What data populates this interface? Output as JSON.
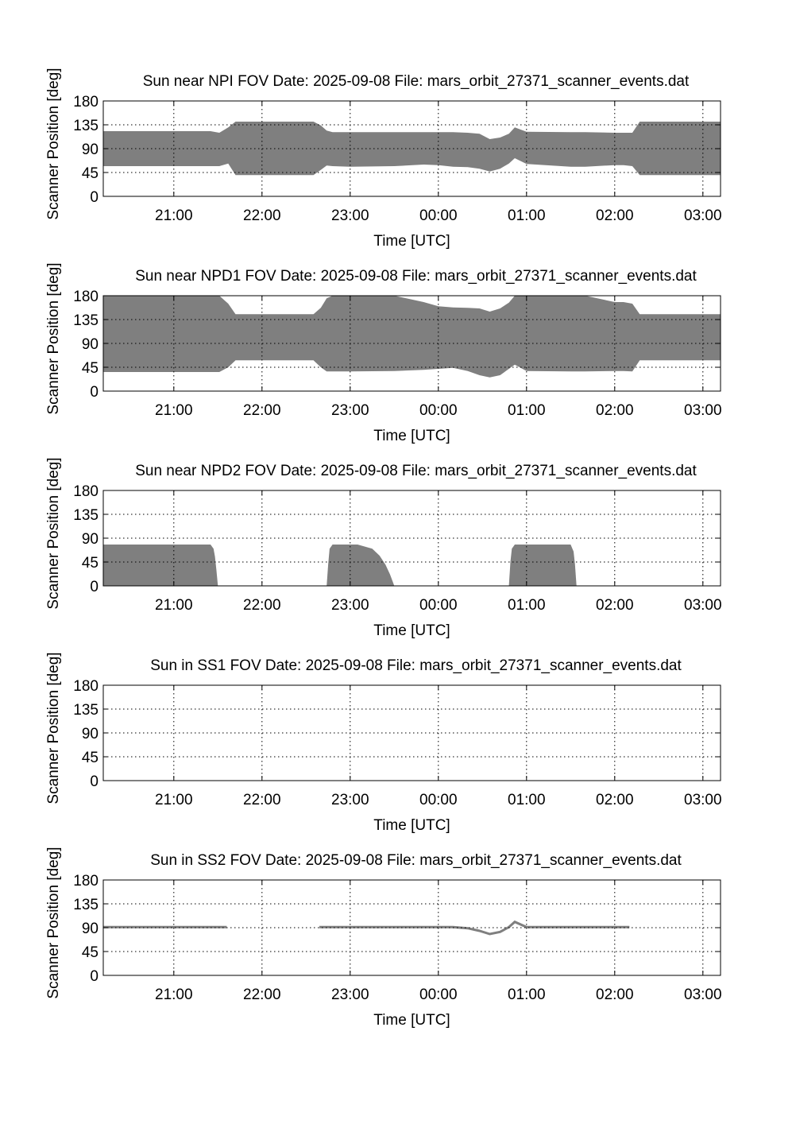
{
  "chart_data": [
    {
      "type": "area",
      "title": "Sun near NPI FOV   Date: 2025-09-08   File: mars_orbit_27371_scanner_events.dat",
      "xlabel": "Time [UTC]",
      "ylabel": "Scanner Position [deg]",
      "x_ticks": [
        "21:00",
        "22:00",
        "23:00",
        "00:00",
        "01:00",
        "02:00",
        "03:00"
      ],
      "y_ticks": [
        "0",
        "45",
        "90",
        "135",
        "180"
      ],
      "xlim": [
        "20:12",
        "03:12"
      ],
      "ylim": [
        0,
        180
      ],
      "grid": true,
      "fill_color": "#7f7f7f",
      "series": [
        {
          "style": "band",
          "segments": [
            {
              "x": [
                "20:12",
                "21:25",
                "21:31",
                "21:37",
                "21:42",
                "22:00",
                "22:35",
                "22:40",
                "22:44",
                "22:48",
                "23:00",
                "23:30",
                "23:50",
                "00:00",
                "00:10",
                "00:20",
                "00:28",
                "00:35",
                "00:42",
                "00:48",
                "00:52",
                "01:00",
                "01:30",
                "01:40",
                "02:00",
                "02:06",
                "02:12",
                "02:17",
                "02:30",
                "03:12"
              ],
              "low": [
                57,
                57,
                57,
                62,
                40,
                40,
                40,
                50,
                58,
                57,
                56,
                57,
                60,
                59,
                56,
                55,
                52,
                47,
                52,
                62,
                72,
                61,
                56,
                56,
                59,
                59,
                57,
                40,
                40,
                40
              ],
              "high": [
                123,
                123,
                120,
                130,
                141,
                141,
                141,
                134,
                124,
                121,
                121,
                121,
                121,
                121,
                121,
                120,
                118,
                108,
                111,
                118,
                130,
                122,
                121,
                121,
                120,
                120,
                120,
                141,
                141,
                141
              ]
            }
          ]
        }
      ]
    },
    {
      "type": "area",
      "title": "Sun near NPD1 FOV   Date: 2025-09-08   File: mars_orbit_27371_scanner_events.dat",
      "xlabel": "Time [UTC]",
      "ylabel": "Scanner Position [deg]",
      "x_ticks": [
        "21:00",
        "22:00",
        "23:00",
        "00:00",
        "01:00",
        "02:00",
        "03:00"
      ],
      "y_ticks": [
        "0",
        "45",
        "90",
        "135",
        "180"
      ],
      "xlim": [
        "20:12",
        "03:12"
      ],
      "ylim": [
        0,
        180
      ],
      "grid": true,
      "fill_color": "#7f7f7f",
      "series": [
        {
          "style": "band",
          "segments": [
            {
              "x": [
                "20:12",
                "21:25",
                "21:31",
                "21:37",
                "21:42",
                "22:00",
                "22:35",
                "22:40",
                "22:44",
                "22:48",
                "23:00",
                "23:30",
                "23:50",
                "00:00",
                "00:10",
                "00:20",
                "00:28",
                "00:35",
                "00:42",
                "00:48",
                "00:52",
                "01:00",
                "01:30",
                "01:40",
                "02:00",
                "02:06",
                "02:12",
                "02:17",
                "02:30",
                "03:12"
              ],
              "low": [
                36,
                36,
                36,
                45,
                58,
                58,
                58,
                45,
                37,
                37,
                37,
                38,
                40,
                42,
                44,
                38,
                30,
                26,
                30,
                42,
                50,
                38,
                37,
                37,
                38,
                38,
                37,
                58,
                58,
                58
              ],
              "high": [
                180,
                180,
                180,
                165,
                145,
                145,
                145,
                157,
                175,
                180,
                180,
                180,
                168,
                160,
                158,
                157,
                156,
                150,
                156,
                167,
                180,
                180,
                180,
                180,
                168,
                168,
                165,
                145,
                145,
                145
              ]
            }
          ]
        }
      ]
    },
    {
      "type": "area",
      "title": "Sun near NPD2 FOV   Date: 2025-09-08   File: mars_orbit_27371_scanner_events.dat",
      "xlabel": "Time [UTC]",
      "ylabel": "Scanner Position [deg]",
      "x_ticks": [
        "21:00",
        "22:00",
        "23:00",
        "00:00",
        "01:00",
        "02:00",
        "03:00"
      ],
      "y_ticks": [
        "0",
        "45",
        "90",
        "135",
        "180"
      ],
      "xlim": [
        "20:12",
        "03:12"
      ],
      "ylim": [
        0,
        180
      ],
      "grid": true,
      "fill_color": "#7f7f7f",
      "series": [
        {
          "style": "band",
          "segments": [
            {
              "x": [
                "20:12",
                "21:25",
                "21:27",
                "21:28",
                "21:29",
                "21:30"
              ],
              "low": [
                0,
                0,
                0,
                0,
                0,
                0
              ],
              "high": [
                78,
                78,
                70,
                55,
                30,
                0
              ]
            },
            {
              "x": [
                "22:44",
                "22:45",
                "22:46",
                "22:48",
                "23:05",
                "23:15",
                "23:20",
                "23:24",
                "23:27",
                "23:29",
                "23:30"
              ],
              "low": [
                0,
                0,
                0,
                0,
                0,
                0,
                0,
                0,
                0,
                0,
                0
              ],
              "high": [
                0,
                40,
                70,
                78,
                78,
                70,
                57,
                40,
                22,
                8,
                0
              ]
            },
            {
              "x": [
                "00:48",
                "00:49",
                "00:50",
                "00:52",
                "01:30",
                "01:32",
                "01:33",
                "01:34"
              ],
              "low": [
                0,
                0,
                0,
                0,
                0,
                0,
                0,
                0
              ],
              "high": [
                0,
                45,
                70,
                78,
                78,
                65,
                40,
                0
              ]
            }
          ]
        }
      ]
    },
    {
      "type": "area",
      "title": "Sun in SS1 FOV   Date: 2025-09-08   File: mars_orbit_27371_scanner_events.dat",
      "xlabel": "Time [UTC]",
      "ylabel": "Scanner Position [deg]",
      "x_ticks": [
        "21:00",
        "22:00",
        "23:00",
        "00:00",
        "01:00",
        "02:00",
        "03:00"
      ],
      "y_ticks": [
        "0",
        "45",
        "90",
        "135",
        "180"
      ],
      "xlim": [
        "20:12",
        "03:12"
      ],
      "ylim": [
        0,
        180
      ],
      "grid": true,
      "fill_color": "#7f7f7f",
      "series": []
    },
    {
      "type": "line",
      "title": "Sun in SS2 FOV   Date: 2025-09-08   File: mars_orbit_27371_scanner_events.dat",
      "xlabel": "Time [UTC]",
      "ylabel": "Scanner Position [deg]",
      "x_ticks": [
        "21:00",
        "22:00",
        "23:00",
        "00:00",
        "01:00",
        "02:00",
        "03:00"
      ],
      "y_ticks": [
        "0",
        "45",
        "90",
        "135",
        "180"
      ],
      "xlim": [
        "20:12",
        "03:12"
      ],
      "ylim": [
        0,
        180
      ],
      "grid": true,
      "fill_color": "#7f7f7f",
      "series": [
        {
          "style": "line",
          "segments": [
            {
              "x": [
                "20:12",
                "21:36"
              ],
              "y": [
                91,
                91
              ]
            },
            {
              "x": [
                "22:39",
                "00:10",
                "00:20",
                "00:28",
                "00:35",
                "00:42",
                "00:48",
                "00:52",
                "01:00",
                "02:10"
              ],
              "y": [
                91,
                91,
                89,
                84,
                78,
                82,
                91,
                101,
                91,
                91
              ]
            }
          ]
        }
      ]
    }
  ]
}
